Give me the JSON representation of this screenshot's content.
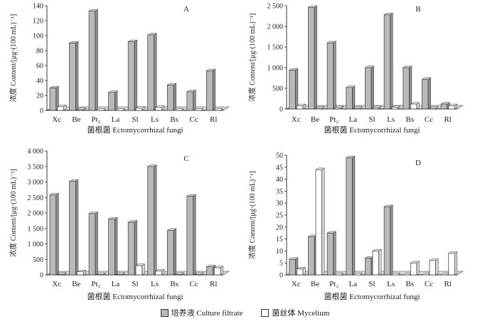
{
  "colors": {
    "culture_filtrate": "#b9b9b9",
    "mycelium": "#ffffff"
  },
  "legend": {
    "culture_filtrate": "培养液 Culture filtrate",
    "mycelium": "菌丝体 Mycelium"
  },
  "chart_data": [
    {
      "type": "bar",
      "title": "A",
      "categories": [
        "Xc",
        "Be",
        "Pt₂",
        "La",
        "Sl",
        "Ls",
        "Bs",
        "Cc",
        "Rl"
      ],
      "xlabel": "菌根菌 Ectomycorrhizal fungi",
      "ylabel": "浓度 Content/[μg·(100 mL)⁻¹]",
      "ylim": [
        0,
        140
      ],
      "ticks": [
        0,
        20,
        40,
        60,
        80,
        100,
        120,
        140
      ],
      "tick_labels": [
        "0",
        "20",
        "40",
        "60",
        "80",
        "100",
        "120",
        "140"
      ],
      "series": [
        {
          "name": "培养液 Culture filtrate",
          "values": [
            30,
            90,
            133,
            24,
            92,
            101,
            34,
            25,
            53
          ]
        },
        {
          "name": "菌丝体 Mycelium",
          "values": [
            5,
            1,
            0,
            0,
            3,
            4,
            0,
            0,
            0
          ]
        }
      ]
    },
    {
      "type": "bar",
      "title": "B",
      "categories": [
        "Xc",
        "Be",
        "Pt₂",
        "La",
        "Sl",
        "Ls",
        "Bs",
        "Cc",
        "Rl"
      ],
      "xlabel": "菌根菌 Ectomycorrhizal fungi",
      "ylabel": "浓度 Content/[μg·(100 mL)⁻¹]",
      "ylim": [
        0,
        2500
      ],
      "ticks": [
        0,
        500,
        1000,
        1500,
        2000,
        2500
      ],
      "tick_labels": [
        "0",
        "500",
        "1 000",
        "1 500",
        "2 000",
        "2 500"
      ],
      "series": [
        {
          "name": "培养液 Culture filtrate",
          "values": [
            940,
            2460,
            1600,
            520,
            1000,
            2280,
            1000,
            720,
            120
          ]
        },
        {
          "name": "菌丝体 Mycelium",
          "values": [
            80,
            20,
            30,
            20,
            30,
            40,
            120,
            20,
            80
          ]
        }
      ]
    },
    {
      "type": "bar",
      "title": "C",
      "categories": [
        "Xc",
        "Be",
        "Pt₂",
        "La",
        "Sl",
        "Ls",
        "Bs",
        "Cc",
        "Rl"
      ],
      "xlabel": "菌根菌 Ectomycorrhizal fungi",
      "ylabel": "浓度 Content/[μg·(100 mL)⁻¹]",
      "ylim": [
        0,
        4000
      ],
      "ticks": [
        0,
        500,
        1000,
        1500,
        2000,
        2500,
        3000,
        3500,
        4000
      ],
      "tick_labels": [
        "0",
        "500",
        "1 000",
        "1 500",
        "2 000",
        "2 500",
        "3 000",
        "3 500",
        "4 000"
      ],
      "series": [
        {
          "name": "培养液 Culture filtrate",
          "values": [
            2580,
            3020,
            1980,
            1800,
            1700,
            3500,
            1440,
            2540,
            260
          ]
        },
        {
          "name": "菌丝体 Mycelium",
          "values": [
            20,
            100,
            10,
            20,
            300,
            120,
            20,
            20,
            230
          ]
        }
      ]
    },
    {
      "type": "bar",
      "title": "D",
      "categories": [
        "Xc",
        "Be",
        "Pt₂",
        "La",
        "Sl",
        "Ls",
        "Bs",
        "Cc",
        "Rl"
      ],
      "xlabel": "菌根菌 Ectomycorrhizal fungi",
      "ylabel": "浓度 Content/[μg·(100 mL)⁻¹]",
      "ylim": [
        0,
        50
      ],
      "ticks": [
        0,
        5,
        10,
        15,
        20,
        25,
        30,
        35,
        40,
        45,
        50
      ],
      "tick_labels": [
        "0",
        "5",
        "10",
        "15",
        "20",
        "25",
        "30",
        "35",
        "40",
        "45",
        "50"
      ],
      "series": [
        {
          "name": "培养液 Culture filtrate",
          "values": [
            6.5,
            16,
            17.5,
            49,
            7,
            28.5,
            0,
            0,
            0
          ]
        },
        {
          "name": "菌丝体 Mycelium",
          "values": [
            2.5,
            44,
            0,
            0,
            10,
            0,
            5,
            6,
            9
          ]
        }
      ]
    }
  ]
}
